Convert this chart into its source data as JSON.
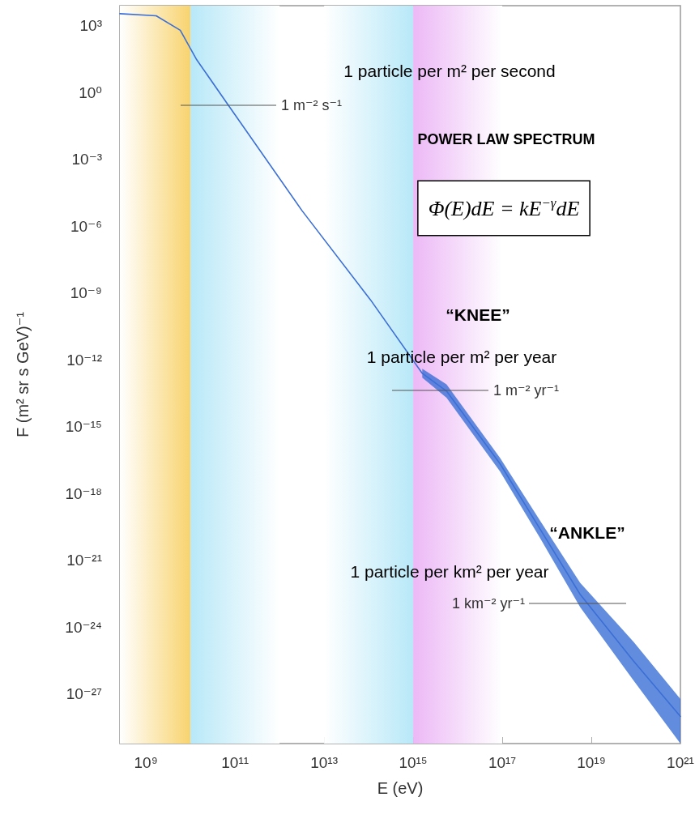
{
  "chart_data": {
    "type": "line",
    "xlabel": "E (eV)",
    "ylabel": "F (m² sr s GeV)⁻¹",
    "log": "xy",
    "grid": false,
    "marker": "none",
    "line_style": "solid",
    "xlim": [
      260000000.0,
      1e+21
    ],
    "ylim": [
      6e-30,
      8000.0
    ],
    "xticks": [
      {
        "value": 1000000000.0,
        "label": "10⁹"
      },
      {
        "value": 100000000000.0,
        "label": "10¹¹"
      },
      {
        "value": 10000000000000.0,
        "label": "10¹³"
      },
      {
        "value": 1000000000000000.0,
        "label": "10¹⁵"
      },
      {
        "value": 1e+17,
        "label": "10¹⁷"
      },
      {
        "value": 1e+19,
        "label": "10¹⁹"
      },
      {
        "value": 1e+21,
        "label": "10²¹"
      }
    ],
    "yticks": [
      {
        "value": 1000.0,
        "label": "10³"
      },
      {
        "value": 1,
        "label": "10⁰"
      },
      {
        "value": 0.001,
        "label": "10⁻³"
      },
      {
        "value": 1e-06,
        "label": "10⁻⁶"
      },
      {
        "value": 1e-09,
        "label": "10⁻⁹"
      },
      {
        "value": 1e-12,
        "label": "10⁻¹²"
      },
      {
        "value": 1e-15,
        "label": "10⁻¹⁵"
      },
      {
        "value": 1e-18,
        "label": "10⁻¹⁸"
      },
      {
        "value": 1e-21,
        "label": "10⁻²¹"
      },
      {
        "value": 1e-24,
        "label": "10⁻²⁴"
      },
      {
        "value": 1e-27,
        "label": "10⁻²⁷"
      }
    ],
    "series": [
      {
        "color": "#3b6fd6",
        "x": [
          260000000.0,
          1700000000.0,
          5900000000.0,
          13500000000.0,
          70000000000.0,
          3200000000000.0,
          110000000000000.0,
          1600000000000000.0,
          5600000000000000.0,
          8.9e+16,
          7.1e+17,
          5.6e+18,
          8.9e+19,
          1e+21
        ],
        "values": [
          3500.0,
          2800.0,
          630.0,
          32,
          0.28,
          5e-06,
          5e-10,
          2.5e-13,
          4e-14,
          2.2e-17,
          2.5e-20,
          3e-23,
          3e-26,
          1e-28
        ],
        "lower": [
          null,
          null,
          null,
          null,
          null,
          null,
          null,
          1.6e-13,
          2e-14,
          1e-17,
          1e-20,
          8e-24,
          4e-27,
          6e-30
        ],
        "upper": [
          null,
          null,
          null,
          null,
          null,
          null,
          null,
          4e-13,
          8e-14,
          4e-17,
          6e-20,
          1e-22,
          2.2e-25,
          6e-28
        ]
      }
    ],
    "bands": [
      {
        "axis": "x",
        "from": 260000000.0,
        "to": 10000000000.0,
        "color": "#f8d36e"
      },
      {
        "axis": "x",
        "from": 10000000000.0,
        "to": 1000000000000.0,
        "color": "#b8e8f8"
      },
      {
        "axis": "x",
        "from": 10000000000000.0,
        "to": 1000000000000000.0,
        "color": "#b8e8f8"
      },
      {
        "axis": "x",
        "from": 1000000000000000.0,
        "to": 1e+17,
        "color": "#ecb8f6"
      }
    ],
    "annotations": [
      "1 particle per m² per second",
      "POWER LAW SPECTRUM",
      "Φ(E)dE = kE$^{−γ}$dE",
      "“KNEE”",
      "1 particle per m² per year",
      "“ANKLE”",
      "1 particle per km² per year",
      "1 m⁻² s⁻¹",
      "1 m⁻² yr⁻¹",
      "1 km⁻² yr⁻¹"
    ]
  }
}
